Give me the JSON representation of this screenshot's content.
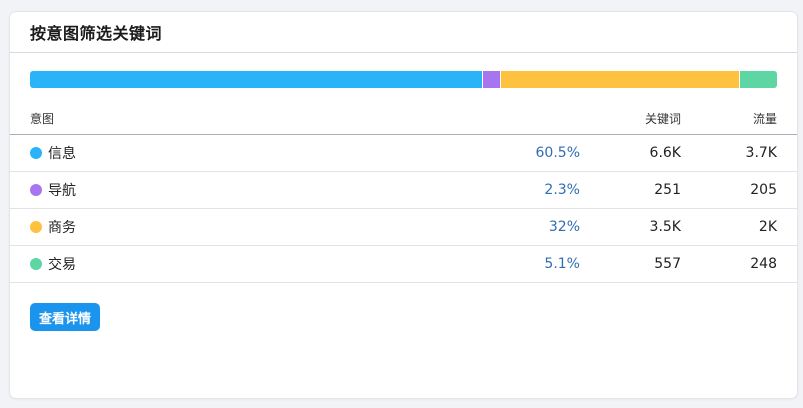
{
  "card": {
    "title": "按意图筛选关键词"
  },
  "stack_bar": {
    "segments": [
      {
        "name": "信息",
        "percent": 60.5,
        "color": "#2bb3f7"
      },
      {
        "name": "导航",
        "percent": 2.3,
        "color": "#a875f0"
      },
      {
        "name": "商务",
        "percent": 32,
        "color": "#fec23f"
      },
      {
        "name": "交易",
        "percent": 5.1,
        "color": "#5ed6a4"
      }
    ]
  },
  "table": {
    "headers": {
      "intent": "意图",
      "keywords": "关键词",
      "traffic": "流量"
    },
    "rows": [
      {
        "intent": "信息",
        "color": "#2bb3f7",
        "percent": "60.5%",
        "keywords": "6.6K",
        "traffic": "3.7K"
      },
      {
        "intent": "导航",
        "color": "#a875f0",
        "percent": "2.3%",
        "keywords": "251",
        "traffic": "205"
      },
      {
        "intent": "商务",
        "color": "#fec23f",
        "percent": "32%",
        "keywords": "3.5K",
        "traffic": "2K"
      },
      {
        "intent": "交易",
        "color": "#5ed6a4",
        "percent": "5.1%",
        "keywords": "557",
        "traffic": "248"
      }
    ]
  },
  "actions": {
    "details_button_label": "查看详情"
  }
}
